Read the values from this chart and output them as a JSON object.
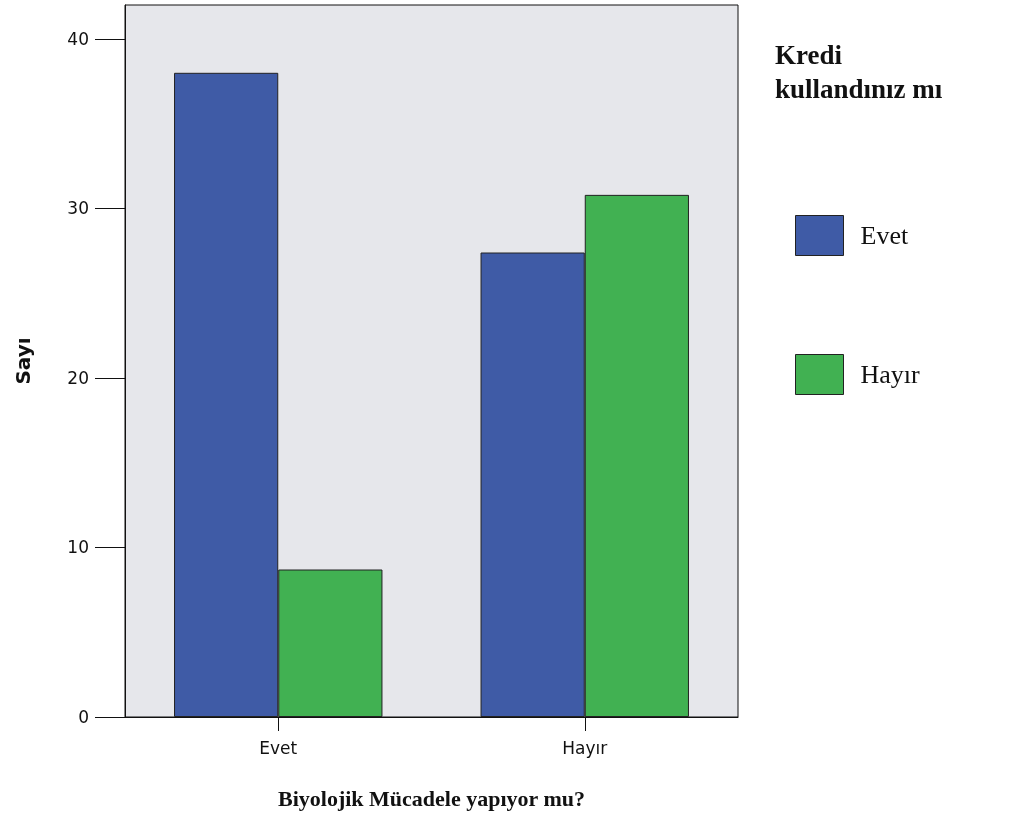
{
  "chart_data": {
    "type": "bar",
    "xlabel": "Biyolojik Mücadele yapıyor mu?",
    "ylabel": "Sayı",
    "legend_title": "Kredi kullandınız mı",
    "categories": [
      "Evet",
      "Hayır"
    ],
    "series": [
      {
        "name": "Evet",
        "color": "#3f5ba6",
        "values": [
          38,
          27.4
        ]
      },
      {
        "name": "Hayır",
        "color": "#41b152",
        "values": [
          8.7,
          30.8
        ]
      }
    ],
    "ylim": [
      0,
      42
    ],
    "yticks": [
      0,
      10,
      20,
      30,
      40
    ],
    "grid": false,
    "legend": "top right"
  }
}
